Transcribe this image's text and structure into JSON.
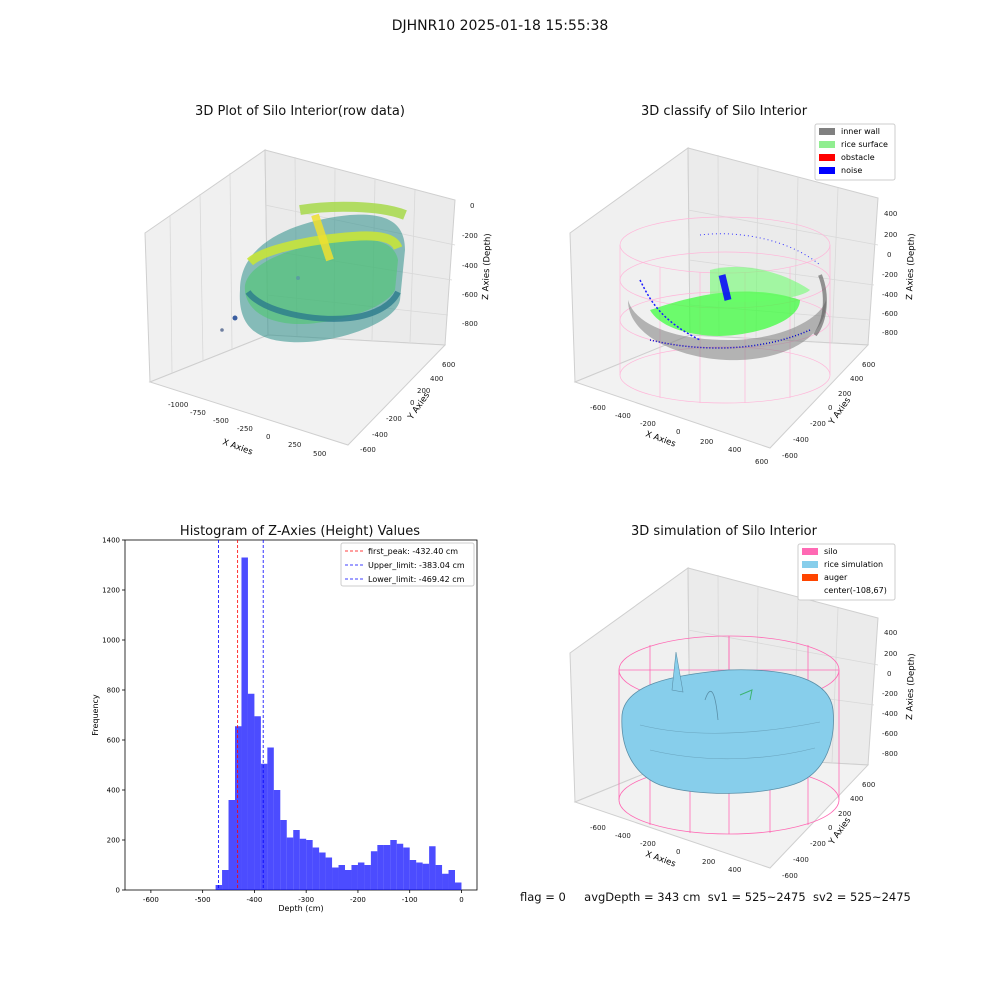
{
  "suptitle": "DJHNR10 2025-01-18 15:55:38",
  "panels": {
    "raw": {
      "title": "3D Plot of Silo Interior(row data)",
      "xlabel": "X Axies",
      "ylabel": "Y Axies",
      "zlabel": "Z Axies (Depth)",
      "xticks": [
        "-1000",
        "-750",
        "-500",
        "-250",
        "0",
        "250",
        "500"
      ],
      "yticks": [
        "-600",
        "-400",
        "-200",
        "0",
        "200",
        "400",
        "600"
      ],
      "zticks": [
        "0",
        "-200",
        "-400",
        "-600",
        "-800"
      ]
    },
    "classify": {
      "title": "3D classify of Silo Interior",
      "xlabel": "X Axies",
      "ylabel": "Y Axies",
      "zlabel": "Z Axies (Depth)",
      "xticks": [
        "-600",
        "-400",
        "-200",
        "0",
        "200",
        "400",
        "600"
      ],
      "yticks": [
        "-600",
        "-400",
        "-200",
        "0",
        "200",
        "400",
        "600"
      ],
      "zticks": [
        "400",
        "200",
        "0",
        "-200",
        "-400",
        "-600",
        "-800"
      ],
      "legend": [
        {
          "label": "inner wall",
          "color": "#808080"
        },
        {
          "label": "rice surface",
          "color": "#90ee90"
        },
        {
          "label": "obstacle",
          "color": "#ff0000"
        },
        {
          "label": "noise",
          "color": "#0000ff"
        }
      ]
    },
    "simulation": {
      "title": "3D simulation of Silo Interior",
      "xlabel": "X Axies",
      "ylabel": "Y Axies",
      "zlabel": "Z Axies (Depth)",
      "xticks": [
        "-600",
        "-400",
        "-200",
        "0",
        "200",
        "400"
      ],
      "yticks": [
        "-600",
        "-400",
        "-200",
        "0",
        "200",
        "400",
        "600"
      ],
      "zticks": [
        "400",
        "200",
        "0",
        "-200",
        "-400",
        "-600",
        "-800"
      ],
      "legend": [
        {
          "label": "silo",
          "color": "#ff69b4"
        },
        {
          "label": "rice simulation",
          "color": "#87ceeb"
        },
        {
          "label": "auger",
          "color": "#ff4500"
        },
        {
          "label": "center(-108,67)",
          "color": ""
        }
      ]
    }
  },
  "chart_data": {
    "type": "bar",
    "title": "Histogram of Z-Axies (Height) Values",
    "xlabel": "Depth (cm)",
    "ylabel": "Frequency",
    "xlim": [
      -650,
      30
    ],
    "ylim": [
      0,
      1400
    ],
    "xticks": [
      -600,
      -500,
      -400,
      -300,
      -200,
      -100,
      0
    ],
    "yticks": [
      0,
      200,
      400,
      600,
      800,
      1000,
      1200,
      1400
    ],
    "bar_color": "#0000ff",
    "bin_width": 12.5,
    "bins": [
      {
        "x0": -475.0,
        "value": 20
      },
      {
        "x0": -462.5,
        "value": 80
      },
      {
        "x0": -450.0,
        "value": 360
      },
      {
        "x0": -437.5,
        "value": 655
      },
      {
        "x0": -425.0,
        "value": 1330
      },
      {
        "x0": -412.5,
        "value": 785
      },
      {
        "x0": -400.0,
        "value": 695
      },
      {
        "x0": -387.5,
        "value": 505
      },
      {
        "x0": -375.0,
        "value": 570
      },
      {
        "x0": -362.5,
        "value": 400
      },
      {
        "x0": -350.0,
        "value": 280
      },
      {
        "x0": -337.5,
        "value": 210
      },
      {
        "x0": -325.0,
        "value": 240
      },
      {
        "x0": -312.5,
        "value": 205
      },
      {
        "x0": -300.0,
        "value": 200
      },
      {
        "x0": -287.5,
        "value": 170
      },
      {
        "x0": -275.0,
        "value": 150
      },
      {
        "x0": -262.5,
        "value": 130
      },
      {
        "x0": -250.0,
        "value": 90
      },
      {
        "x0": -237.5,
        "value": 100
      },
      {
        "x0": -225.0,
        "value": 80
      },
      {
        "x0": -212.5,
        "value": 100
      },
      {
        "x0": -200.0,
        "value": 110
      },
      {
        "x0": -187.5,
        "value": 100
      },
      {
        "x0": -175.0,
        "value": 155
      },
      {
        "x0": -162.5,
        "value": 180
      },
      {
        "x0": -150.0,
        "value": 180
      },
      {
        "x0": -137.5,
        "value": 200
      },
      {
        "x0": -125.0,
        "value": 185
      },
      {
        "x0": -112.5,
        "value": 170
      },
      {
        "x0": -100.0,
        "value": 120
      },
      {
        "x0": -87.5,
        "value": 110
      },
      {
        "x0": -75.0,
        "value": 105
      },
      {
        "x0": -62.5,
        "value": 175
      },
      {
        "x0": -50.0,
        "value": 100
      },
      {
        "x0": -37.5,
        "value": 65
      },
      {
        "x0": -25.0,
        "value": 80
      },
      {
        "x0": -12.5,
        "value": 30
      }
    ],
    "vlines": [
      {
        "name": "first_peak: -432.40 cm",
        "x": -432.4,
        "color": "#ff0000"
      },
      {
        "name": "Upper_limit: -383.04 cm",
        "x": -383.04,
        "color": "#0000ff"
      },
      {
        "name": "Lower_limit: -469.42 cm",
        "x": -469.42,
        "color": "#0000ff"
      }
    ],
    "legend_position": "top-right"
  },
  "footer": {
    "flag": "flag = 0",
    "avg": "avgDepth = 343 cm",
    "sv1": "sv1 = 525~2475",
    "sv2": "sv2 = 525~2475"
  }
}
